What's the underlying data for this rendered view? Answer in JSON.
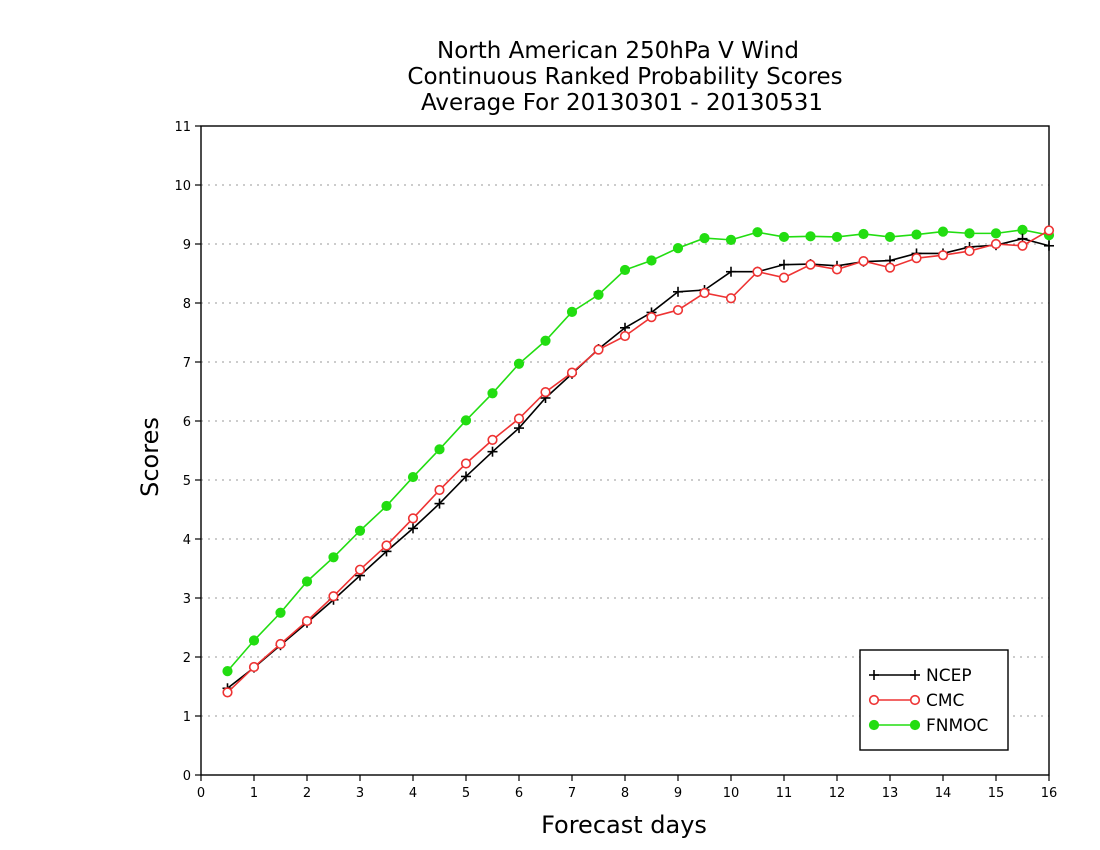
{
  "chart_data": {
    "type": "line",
    "title_lines": [
      "North American 250hPa V Wind",
      "Continuous Ranked Probability Scores",
      "Average For 20130301 - 20130531"
    ],
    "xlabel": "Forecast days",
    "ylabel": "Scores",
    "xlim": [
      0,
      16
    ],
    "ylim": [
      0,
      11
    ],
    "xticks": [
      "0",
      "1",
      "2",
      "3",
      "4",
      "5",
      "6",
      "7",
      "8",
      "9",
      "10",
      "11",
      "12",
      "13",
      "14",
      "15",
      "16"
    ],
    "yticks": [
      "0",
      "1",
      "2",
      "3",
      "4",
      "5",
      "6",
      "7",
      "8",
      "9",
      "10",
      "11"
    ],
    "grid": "horizontal dotted",
    "legend_position": "bottom-right",
    "x": [
      0.5,
      1,
      1.5,
      2,
      2.5,
      3,
      3.5,
      4,
      4.5,
      5,
      5.5,
      6,
      6.5,
      7,
      7.5,
      8,
      8.5,
      9,
      9.5,
      10,
      10.5,
      11,
      11.5,
      12,
      12.5,
      13,
      13.5,
      14,
      14.5,
      15,
      15.5,
      16
    ],
    "series": [
      {
        "name": "NCEP",
        "color": "#000000",
        "marker": "plus",
        "values": [
          1.47,
          1.82,
          2.2,
          2.58,
          2.97,
          3.38,
          3.79,
          4.18,
          4.6,
          5.06,
          5.48,
          5.88,
          6.39,
          6.8,
          7.22,
          7.58,
          7.84,
          8.19,
          8.22,
          8.53,
          8.53,
          8.65,
          8.66,
          8.63,
          8.7,
          8.72,
          8.84,
          8.84,
          8.95,
          8.98,
          9.09,
          8.97
        ]
      },
      {
        "name": "CMC",
        "color": "#ee3333",
        "marker": "open-circle",
        "values": [
          1.4,
          1.83,
          2.22,
          2.61,
          3.03,
          3.48,
          3.89,
          4.35,
          4.83,
          5.28,
          5.68,
          6.04,
          6.49,
          6.82,
          7.21,
          7.44,
          7.76,
          7.88,
          8.17,
          8.08,
          8.53,
          8.43,
          8.65,
          8.57,
          8.71,
          8.6,
          8.76,
          8.81,
          8.88,
          9.0,
          8.97,
          9.23
        ]
      },
      {
        "name": "FNMOC",
        "color": "#22dd11",
        "marker": "filled-circle",
        "values": [
          1.76,
          2.28,
          2.75,
          3.28,
          3.69,
          4.14,
          4.56,
          5.05,
          5.52,
          6.01,
          6.47,
          6.97,
          7.36,
          7.85,
          8.14,
          8.56,
          8.72,
          8.93,
          9.1,
          9.07,
          9.2,
          9.12,
          9.13,
          9.12,
          9.17,
          9.12,
          9.16,
          9.21,
          9.18,
          9.18,
          9.24,
          9.15
        ]
      }
    ]
  }
}
